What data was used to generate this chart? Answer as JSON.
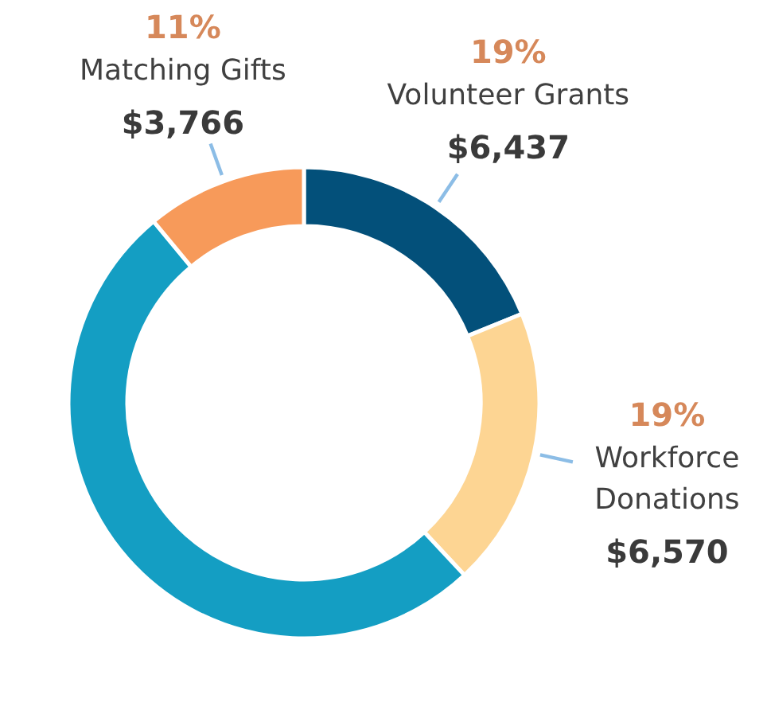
{
  "chart_data": {
    "type": "donut",
    "categories": [
      "Volunteer Grants",
      "Workforce Donations",
      null,
      "Matching Gifts"
    ],
    "values": [
      6437,
      6570,
      17400,
      3766
    ],
    "colors": [
      "#03507a",
      "#fdd593",
      "#149ec3",
      "#f79a5a"
    ],
    "value_labels": [
      "$6,437",
      "$6,570",
      null,
      "$3,766"
    ],
    "annotations": [
      "19%",
      "19%",
      "11%"
    ]
  }
}
